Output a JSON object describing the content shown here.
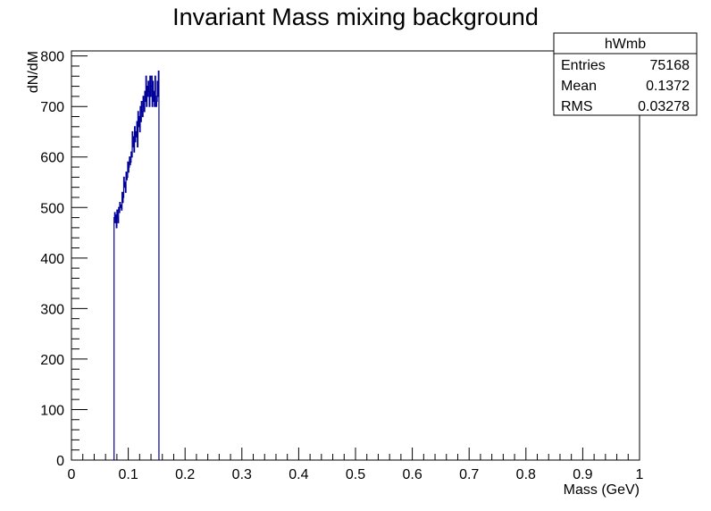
{
  "chart_data": {
    "type": "histogram",
    "title": "Invariant Mass mixing background",
    "xlabel": "Mass (GeV)",
    "ylabel": "dN/dM",
    "xlim": [
      0,
      1
    ],
    "ylim": [
      0,
      810
    ],
    "x_ticks": [
      "0",
      "0.1",
      "0.2",
      "0.3",
      "0.4",
      "0.5",
      "0.6",
      "0.7",
      "0.8",
      "0.9",
      "1"
    ],
    "y_ticks": [
      "0",
      "100",
      "200",
      "300",
      "400",
      "500",
      "600",
      "700",
      "800"
    ],
    "line_color": "#000099",
    "series": [
      {
        "x_start": 0.075,
        "bin_width": 0.001,
        "values": [
          480,
          490,
          470,
          485,
          460,
          495,
          480,
          470,
          500,
          490,
          510,
          500,
          505,
          495,
          530,
          510,
          520,
          560,
          540,
          550,
          530,
          570,
          555,
          560,
          590,
          570,
          580,
          600,
          585,
          590,
          610,
          600,
          650,
          620,
          640,
          610,
          660,
          630,
          650,
          640,
          670,
          620,
          690,
          660,
          680,
          650,
          700,
          670,
          710,
          690,
          680,
          720,
          700,
          690,
          730,
          710,
          760,
          700,
          740,
          720,
          750,
          730,
          700,
          760,
          720,
          740,
          760,
          700,
          750,
          710,
          730,
          700,
          760,
          720,
          700,
          710,
          750,
          720,
          770
        ]
      }
    ]
  },
  "stats_box": {
    "name": "hWmb",
    "rows": [
      {
        "label": "Entries",
        "value": "75168"
      },
      {
        "label": "Mean",
        "value": "0.1372"
      },
      {
        "label": "RMS",
        "value": "0.03278"
      }
    ]
  }
}
